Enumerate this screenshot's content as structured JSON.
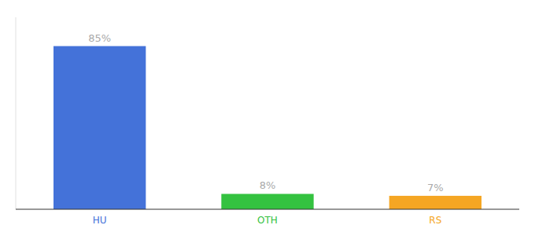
{
  "chart_data": {
    "type": "bar",
    "categories": [
      "HU",
      "OTH",
      "RS"
    ],
    "values": [
      85,
      8,
      7
    ],
    "value_labels": [
      "85%",
      "8%",
      "7%"
    ],
    "colors": [
      "#4472d9",
      "#34c240",
      "#f5a623"
    ],
    "ylim": [
      0,
      100
    ],
    "data_labels": true,
    "tick_labels": "x",
    "grid": false
  }
}
